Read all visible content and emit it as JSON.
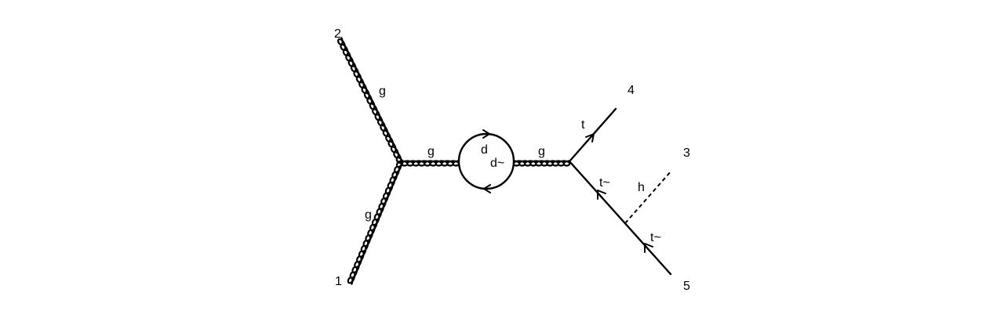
{
  "diagram": {
    "external_labels": {
      "p1": "1",
      "p2": "2",
      "p3": "3",
      "p4": "4",
      "p5": "5"
    },
    "particle_labels": {
      "gluon_in_2": "g",
      "gluon_in_1": "g",
      "gluon_left_prop": "g",
      "gluon_right_prop": "g",
      "loop_quark": "d",
      "loop_antiquark": "d~",
      "top_out": "t",
      "antitop_prop": "t~",
      "higgs": "h",
      "antitop_out": "t~"
    }
  }
}
